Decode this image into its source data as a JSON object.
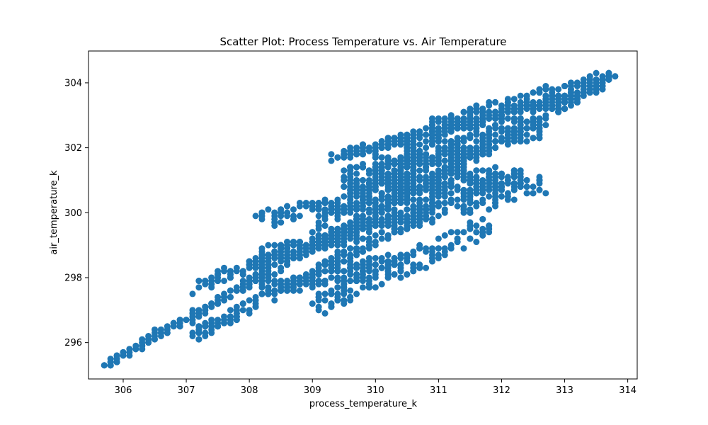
{
  "chart_data": {
    "type": "scatter",
    "title": "Scatter Plot: Process Temperature vs. Air Temperature",
    "xlabel": "process_temperature_k",
    "ylabel": "air_temperature_k",
    "xlim": [
      305.45,
      314.15
    ],
    "ylim": [
      294.88,
      304.98
    ],
    "xticks": [
      306,
      307,
      308,
      309,
      310,
      311,
      312,
      313,
      314
    ],
    "yticks": [
      296,
      298,
      300,
      302,
      304
    ],
    "grid": false,
    "marker_color": "#1f77b4",
    "bands": [
      {
        "x0": 305.7,
        "x1": 313.8,
        "y_at_x0": 295.3,
        "y_at_x1": 304.2,
        "spread": 0.15
      },
      {
        "x0": 307.1,
        "x1": 311.0,
        "y_at_x0": 296.2,
        "y_at_x1": 300.2,
        "spread": 0.2
      },
      {
        "x0": 307.1,
        "x1": 310.3,
        "y_at_x0": 297.7,
        "y_at_x1": 300.0,
        "spread": 0.2
      },
      {
        "x0": 308.1,
        "x1": 312.7,
        "y_at_x0": 298.6,
        "y_at_x1": 300.9,
        "spread": 0.3
      },
      {
        "x0": 308.1,
        "x1": 312.4,
        "y_at_x0": 299.8,
        "y_at_x1": 301.1,
        "spread": 0.25
      },
      {
        "x0": 309.0,
        "x1": 311.4,
        "y_at_x0": 299.4,
        "y_at_x1": 302.6,
        "spread": 0.45
      },
      {
        "x0": 309.0,
        "x1": 311.9,
        "y_at_x0": 297.1,
        "y_at_x1": 299.7,
        "spread": 0.35
      },
      {
        "x0": 309.3,
        "x1": 313.2,
        "y_at_x0": 301.7,
        "y_at_x1": 303.6,
        "spread": 0.15
      },
      {
        "x0": 309.5,
        "x1": 312.0,
        "y_at_x0": 300.8,
        "y_at_x1": 301.2,
        "spread": 0.2
      },
      {
        "x0": 310.0,
        "x1": 312.7,
        "y_at_x0": 301.7,
        "y_at_x1": 302.7,
        "spread": 0.4
      },
      {
        "x0": 310.2,
        "x1": 311.3,
        "y_at_x0": 301.0,
        "y_at_x1": 302.2,
        "spread": 0.6
      },
      {
        "x0": 310.8,
        "x1": 313.8,
        "y_at_x0": 302.6,
        "y_at_x1": 304.2,
        "spread": 0.25
      },
      {
        "x0": 309.5,
        "x1": 311.5,
        "y_at_x0": 301.2,
        "y_at_x1": 301.8,
        "spread": 0.2
      },
      {
        "x0": 308.2,
        "x1": 310.5,
        "y_at_x0": 297.6,
        "y_at_x1": 298.6,
        "spread": 0.25
      }
    ]
  }
}
